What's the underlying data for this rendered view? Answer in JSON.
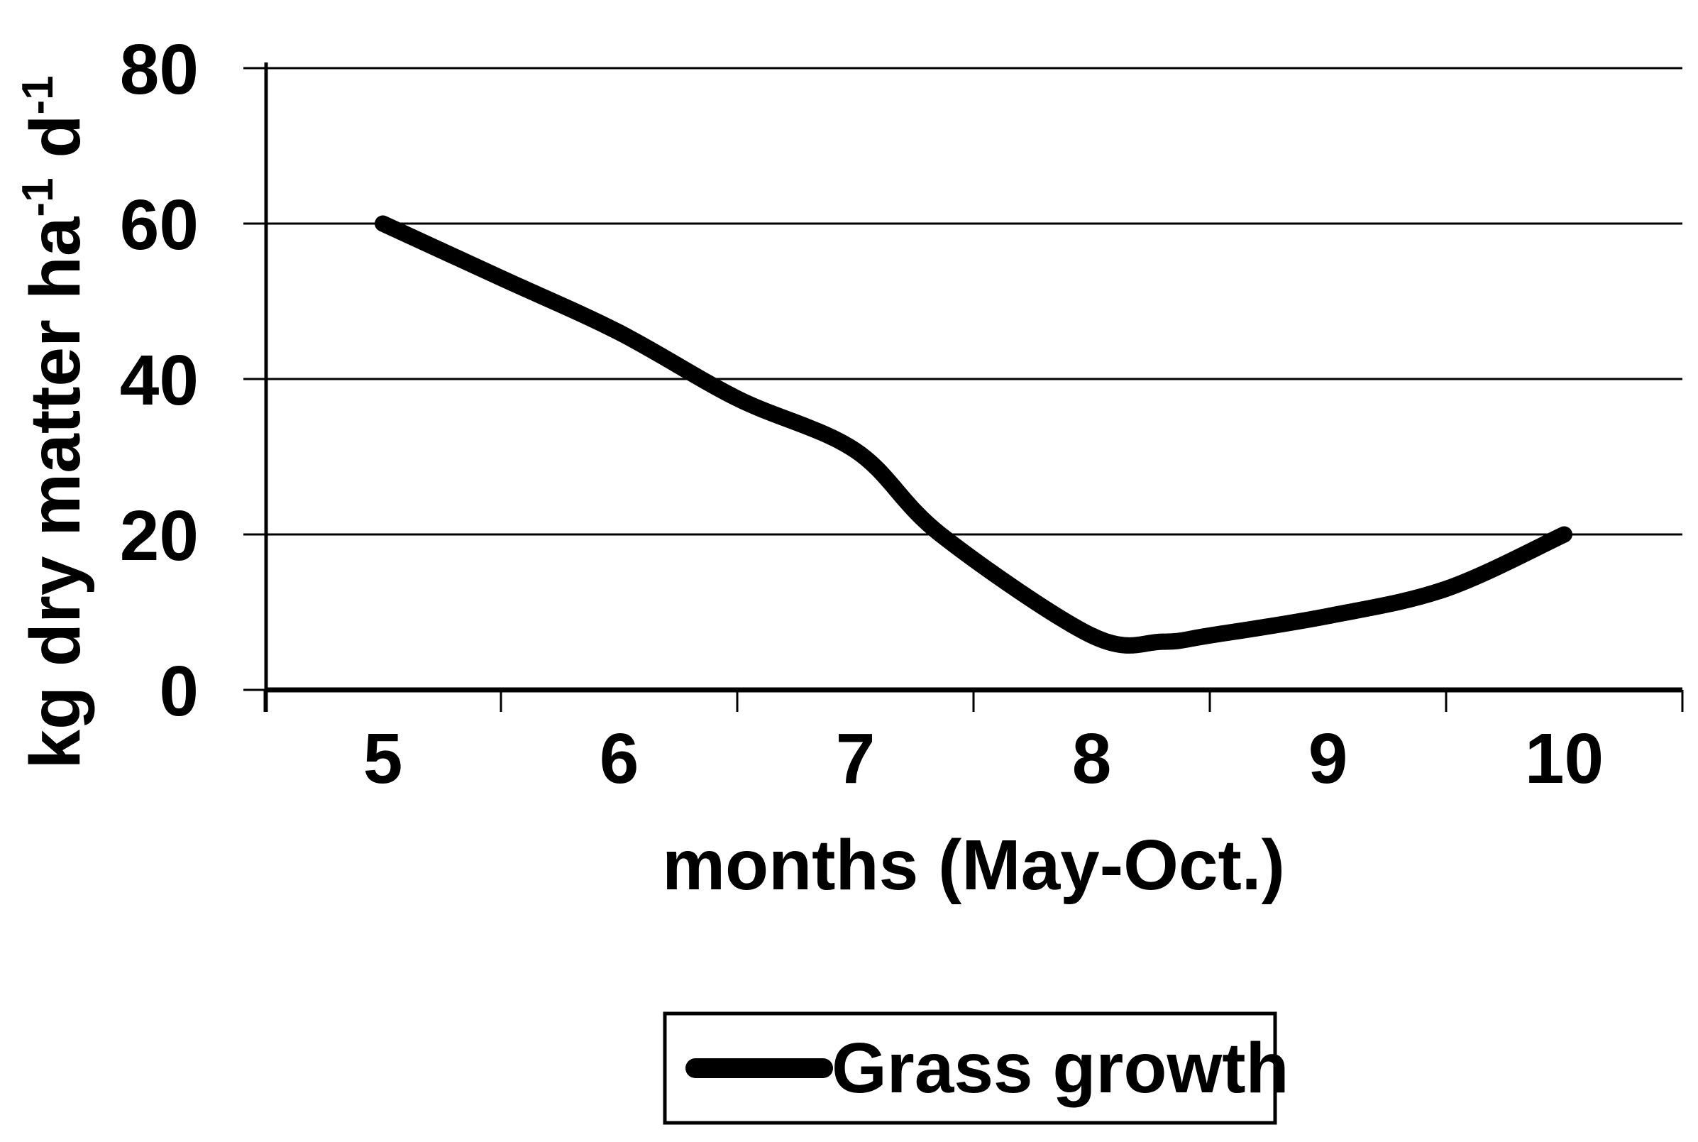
{
  "chart_data": {
    "type": "line",
    "title": "",
    "xlabel": "months (May-Oct.)",
    "ylabel": "kg dry matter ha-1 d-1",
    "ylabel_parts": [
      {
        "t": "kg dry matter ha",
        "sup": false
      },
      {
        "t": "-1",
        "sup": true
      },
      {
        "t": " d",
        "sup": false
      },
      {
        "t": "-1",
        "sup": true
      }
    ],
    "x": [
      5,
      6,
      7,
      8,
      9,
      10
    ],
    "x_tick_labels": [
      "5",
      "6",
      "7",
      "8",
      "9",
      "10"
    ],
    "y_ticks": [
      0,
      20,
      40,
      60,
      80
    ],
    "y_tick_labels": [
      "0",
      "20",
      "40",
      "60",
      "80"
    ],
    "xlim": [
      4.5,
      10.5
    ],
    "ylim": [
      0,
      80
    ],
    "grid": "horizontal",
    "line_smoothed": true,
    "series": [
      {
        "name": "Grass growth",
        "color": "#000000",
        "values": [
          60,
          45,
          30,
          7,
          10,
          20
        ]
      }
    ],
    "curve_samples": [
      [
        5.0,
        60.0
      ],
      [
        5.5,
        53.0
      ],
      [
        6.0,
        46.0
      ],
      [
        6.5,
        37.5
      ],
      [
        7.0,
        30.8
      ],
      [
        7.36,
        20.0
      ],
      [
        8.0,
        7.0
      ],
      [
        8.3,
        6.2
      ],
      [
        8.5,
        7.0
      ],
      [
        9.0,
        9.5
      ],
      [
        9.5,
        13.0
      ],
      [
        10.0,
        20.0
      ]
    ],
    "legend": {
      "position": "bottom-center",
      "entries": [
        "Grass growth"
      ]
    },
    "colors": {
      "line": "#000000",
      "axis": "#000000",
      "grid": "#000000",
      "background": "#ffffff",
      "text": "#000000"
    }
  }
}
